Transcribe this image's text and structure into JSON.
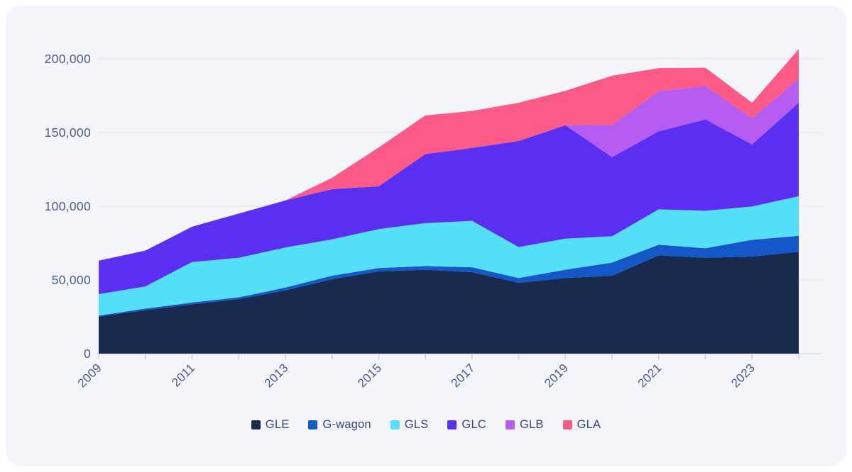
{
  "chart_data": {
    "type": "area",
    "stacked": true,
    "title": "",
    "xlabel": "",
    "ylabel": "",
    "x": [
      2009,
      2010,
      2011,
      2012,
      2013,
      2014,
      2015,
      2016,
      2017,
      2018,
      2019,
      2020,
      2021,
      2022,
      2023,
      2024
    ],
    "series": [
      {
        "name": "GLE",
        "color": "#182a4e",
        "values": [
          25100,
          29500,
          33500,
          37000,
          42900,
          50500,
          55800,
          56900,
          55300,
          48100,
          51300,
          52900,
          66700,
          65000,
          65900,
          69100
        ]
      },
      {
        "name": "G-wagon",
        "color": "#1457c9",
        "values": [
          700,
          1100,
          1200,
          1200,
          1900,
          2400,
          2300,
          2500,
          3300,
          3200,
          5600,
          8900,
          7200,
          6500,
          11300,
          10800
        ]
      },
      {
        "name": "GLS",
        "color": "#55dff8",
        "values": [
          14600,
          15000,
          27400,
          26800,
          27200,
          24600,
          26400,
          29100,
          31500,
          21000,
          21100,
          17800,
          24000,
          25400,
          22600,
          26900
        ]
      },
      {
        "name": "GLC",
        "color": "#5a2ff2",
        "values": [
          22700,
          24300,
          24000,
          30000,
          31900,
          34100,
          29000,
          46900,
          49400,
          72000,
          76900,
          53700,
          52900,
          62000,
          42100,
          63400
        ]
      },
      {
        "name": "GLB",
        "color": "#b55df2",
        "values": [
          0,
          0,
          0,
          0,
          0,
          0,
          0,
          0,
          0,
          0,
          0,
          21900,
          27200,
          22700,
          17800,
          16200
        ]
      },
      {
        "name": "GLA",
        "color": "#fb5b86",
        "values": [
          0,
          0,
          0,
          0,
          0,
          7700,
          26400,
          26200,
          25100,
          25900,
          23400,
          33300,
          15700,
          12400,
          10500,
          20200
        ]
      }
    ],
    "ylim": [
      0,
      200000
    ],
    "y_ticks": [
      {
        "value": 0,
        "label": "0"
      },
      {
        "value": 50000,
        "label": "50,000"
      },
      {
        "value": 100000,
        "label": "100,000"
      },
      {
        "value": 150000,
        "label": "150,000"
      },
      {
        "value": 200000,
        "label": "200,000"
      }
    ],
    "x_tick_labels": [
      "2009",
      "2011",
      "2013",
      "2015",
      "2017",
      "2019",
      "2021",
      "2023"
    ],
    "x_label_indices": [
      0,
      2,
      4,
      6,
      8,
      10,
      12,
      14
    ],
    "grid": "horizontal",
    "legend_position": "bottom"
  },
  "colors": {
    "page_bg": "#ffffff",
    "card_bg": "#f4f5fa",
    "gridline": "#e1e5f2",
    "baseline": "#d2d8ea",
    "tick": "#c9cfe2",
    "axis_label": "#47598c",
    "legend_text": "#33467c"
  }
}
